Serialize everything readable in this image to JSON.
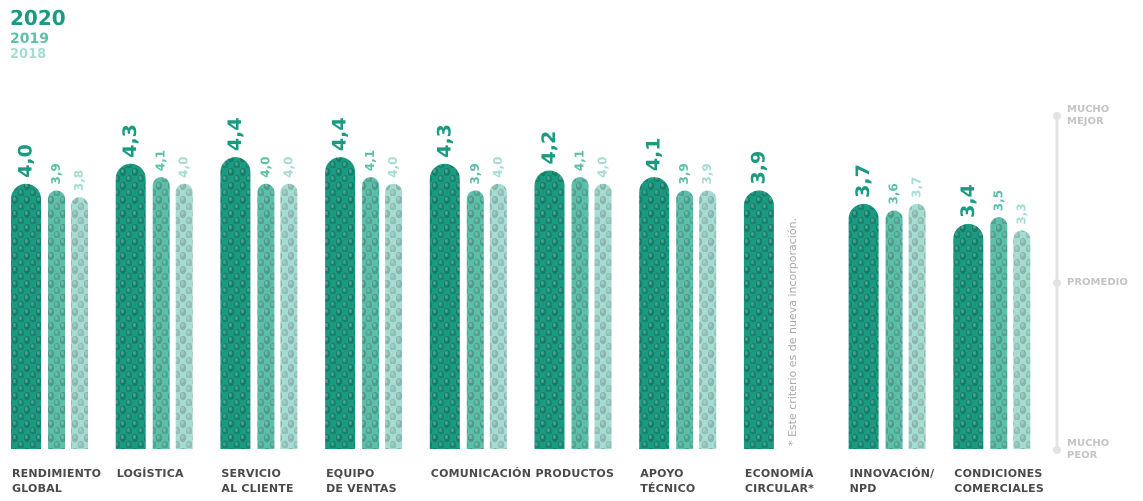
{
  "chart_data": {
    "type": "bar",
    "categories": [
      "RENDIMIENTO\nGLOBAL",
      "LOGÍSTICA",
      "SERVICIO\nAL CLIENTE",
      "EQUIPO\nDE VENTAS",
      "COMUNICACIÓN",
      "PRODUCTOS",
      "APOYO\nTÉCNICO",
      "ECONOMÍA\nCIRCULAR*",
      "INNOVACIÓN/\nNPD",
      "CONDICIONES\nCOMERCIALES"
    ],
    "series": [
      {
        "name": "2020",
        "color": "#1a9a80",
        "values": [
          4.0,
          4.3,
          4.4,
          4.4,
          4.3,
          4.2,
          4.1,
          3.9,
          3.7,
          3.4
        ],
        "value_labels": [
          "4,0",
          "4,3",
          "4,4",
          "4,4",
          "4,3",
          "4,2",
          "4,1",
          "3,9",
          "3,7",
          "3,4"
        ]
      },
      {
        "name": "2019",
        "color": "#5cbfa9",
        "values": [
          3.9,
          4.1,
          4.0,
          4.1,
          3.9,
          4.1,
          3.9,
          null,
          3.6,
          3.5
        ],
        "value_labels": [
          "3,9",
          "4,1",
          "4,0",
          "4,1",
          "3,9",
          "4,1",
          "3,9",
          null,
          "3,6",
          "3,5"
        ]
      },
      {
        "name": "2018",
        "color": "#a6ddd2",
        "values": [
          3.8,
          4.0,
          4.0,
          4.0,
          4.0,
          4.0,
          3.9,
          null,
          3.7,
          3.3
        ],
        "value_labels": [
          "3,8",
          "4,0",
          "4,0",
          "4,0",
          "4,0",
          "4,0",
          "3,9",
          null,
          "3,7",
          "3,3"
        ]
      }
    ],
    "ylim": [
      0,
      5
    ],
    "yticks": [
      {
        "value": 0,
        "label": "MUCHO\nPEOR"
      },
      {
        "value": 2.5,
        "label": "PROMEDIO"
      },
      {
        "value": 5,
        "label": "MUCHO\nMEJOR"
      }
    ],
    "annotation": "* Este criterio es de nueva incorporación."
  }
}
